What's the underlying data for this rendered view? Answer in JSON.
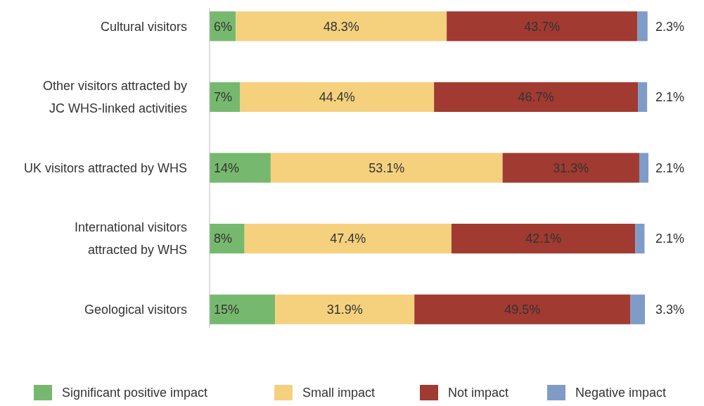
{
  "chart_data": {
    "type": "bar",
    "orientation": "horizontal",
    "stacked": true,
    "data_labels": true,
    "legend": "bottom",
    "categories": [
      "Cultural visitors",
      "Other visitors attracted by JC WHS-linked activities",
      "UK visitors attracted by WHS",
      "International visitors attracted by WHS",
      "Geological visitors"
    ],
    "series": [
      {
        "name": "Significant positive impact",
        "color": "#76b96e",
        "values": [
          6,
          7,
          14,
          8,
          15
        ],
        "value_labels": [
          "6%",
          "7%",
          "14%",
          "8%",
          "15%"
        ]
      },
      {
        "name": "Small impact",
        "color": "#f5d17e",
        "values": [
          48.3,
          44.4,
          53.1,
          47.4,
          31.9
        ],
        "value_labels": [
          "48.3%",
          "44.4%",
          "53.1%",
          "47.4%",
          "31.9%"
        ]
      },
      {
        "name": "Not impact",
        "color": "#a13a31",
        "values": [
          43.7,
          46.7,
          31.3,
          42.1,
          49.5
        ],
        "value_labels": [
          "43.7%",
          "46.7%",
          "31.3%",
          "42.1%",
          "49.5%"
        ]
      },
      {
        "name": "Negative impact",
        "color": "#7f9cc8",
        "values": [
          2.3,
          2.1,
          2.1,
          2.1,
          3.3
        ],
        "value_labels": [
          "2.3%",
          "2.1%",
          "2.1%",
          "2.1%",
          "3.3%"
        ]
      }
    ]
  }
}
